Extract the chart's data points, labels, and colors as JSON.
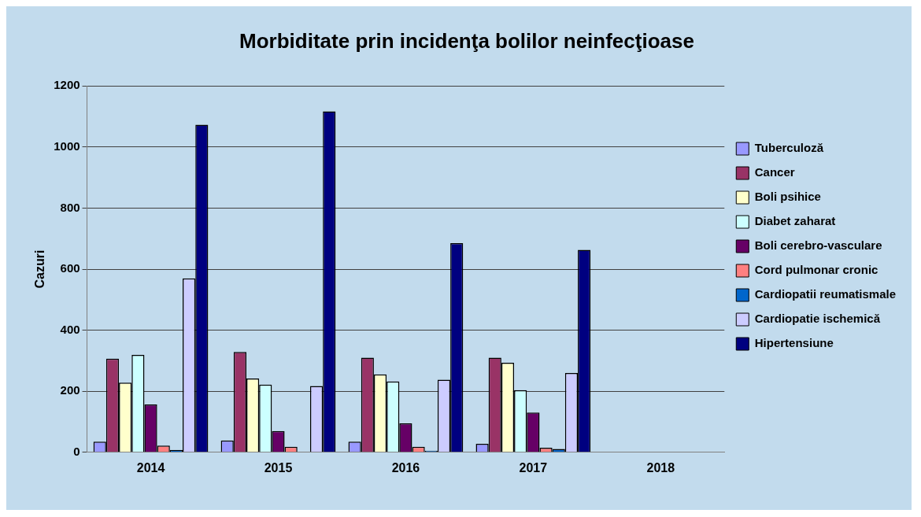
{
  "chart_data": {
    "type": "bar",
    "title": "Morbiditate prin incidenţa bolilor neinfecţioase",
    "ylabel": "Cazuri",
    "categories": [
      "2014",
      "2015",
      "2016",
      "2017",
      "2018"
    ],
    "series": [
      {
        "name": "Tuberculoză",
        "color": "#9999ff",
        "values": [
          35,
          39,
          35,
          28,
          null
        ]
      },
      {
        "name": "Cancer",
        "color": "#993366",
        "values": [
          307,
          329,
          310,
          310,
          null
        ]
      },
      {
        "name": "Boli psihice",
        "color": "#ffffcc",
        "values": [
          228,
          242,
          255,
          293,
          null
        ]
      },
      {
        "name": "Diabet zaharat",
        "color": "#ccffff",
        "values": [
          319,
          222,
          232,
          204,
          null
        ]
      },
      {
        "name": "Boli cerebro-vasculare",
        "color": "#660066",
        "values": [
          157,
          70,
          95,
          130,
          null
        ]
      },
      {
        "name": "Cord pulmonar cronic",
        "color": "#ff8080",
        "values": [
          22,
          18,
          18,
          15,
          null
        ]
      },
      {
        "name": "Cardiopatii reumatismale",
        "color": "#0066cc",
        "values": [
          8,
          null,
          5,
          11,
          null
        ]
      },
      {
        "name": "Cardiopatie ischemică",
        "color": "#ccccff",
        "values": [
          570,
          217,
          238,
          260,
          null
        ]
      },
      {
        "name": "Hipertensiune",
        "color": "#000080",
        "values": [
          1073,
          1117,
          685,
          663,
          null
        ]
      }
    ],
    "ylim": [
      0,
      1200
    ],
    "yticks": [
      0,
      200,
      400,
      600,
      800,
      1000,
      1200
    ],
    "grid": "y",
    "legend": "right"
  }
}
